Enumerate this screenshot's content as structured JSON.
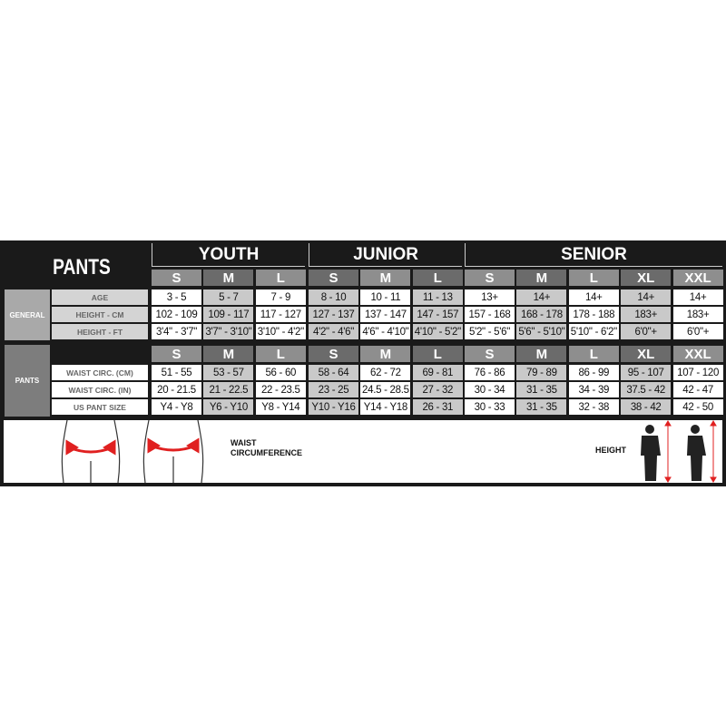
{
  "title": "PANTS",
  "groups": [
    {
      "label": "YOUTH",
      "sizes": [
        "S",
        "M",
        "L"
      ]
    },
    {
      "label": "JUNIOR",
      "sizes": [
        "S",
        "M",
        "L"
      ]
    },
    {
      "label": "SENIOR",
      "sizes": [
        "S",
        "M",
        "L",
        "XL",
        "XXL"
      ]
    }
  ],
  "general": {
    "label": "GENERAL",
    "rows": [
      {
        "label": "AGE",
        "values": [
          "3 - 5",
          "5 - 7",
          "7 - 9",
          "8 - 10",
          "10 - 11",
          "11 - 13",
          "13+",
          "14+",
          "14+",
          "14+",
          "14+"
        ]
      },
      {
        "label": "HEIGHT - CM",
        "values": [
          "102 - 109",
          "109 - 117",
          "117 - 127",
          "127 - 137",
          "137 - 147",
          "147 - 157",
          "157 - 168",
          "168 - 178",
          "178 - 188",
          "183+",
          "183+"
        ]
      },
      {
        "label": "HEIGHT - FT",
        "values": [
          "3'4\" - 3'7\"",
          "3'7\" - 3'10\"",
          "3'10\" - 4'2\"",
          "4'2\" - 4'6\"",
          "4'6\" - 4'10\"",
          "4'10\" - 5'2\"",
          "5'2\" - 5'6\"",
          "5'6\" - 5'10\"",
          "5'10\" - 6'2\"",
          "6'0\"+",
          "6'0\"+"
        ]
      }
    ]
  },
  "pants": {
    "label": "PANTS",
    "rows": [
      {
        "label": "WAIST CIRC. (CM)",
        "values": [
          "51 - 55",
          "53 - 57",
          "56 - 60",
          "58 - 64",
          "62 - 72",
          "69 - 81",
          "76 - 86",
          "79 - 89",
          "86 - 99",
          "95 - 107",
          "107 - 120"
        ]
      },
      {
        "label": "WAIST CIRC. (IN)",
        "values": [
          "20 - 21.5",
          "21 - 22.5",
          "22 - 23.5",
          "23 - 25",
          "24.5 - 28.5",
          "27 - 32",
          "30 - 34",
          "31 - 35",
          "34 - 39",
          "37.5 - 42",
          "42 - 47"
        ]
      },
      {
        "label": "US PANT SIZE",
        "values": [
          "Y4 - Y8",
          "Y6 - Y10",
          "Y8 - Y14",
          "Y10 - Y16",
          "Y14 - Y18",
          "26 - 31",
          "30 - 33",
          "31 - 35",
          "32 - 38",
          "38 - 42",
          "42 - 50"
        ]
      }
    ]
  },
  "illustration": {
    "waist_label": "WAIST CIRCUMFERENCE",
    "height_label": "HEIGHT",
    "arrow_color": "#e02020"
  },
  "colors": {
    "background": "#1a1a1a",
    "size_dark": "#6b6b6b",
    "size_light": "#8e8e8e",
    "cell_gray": "#c9c9c9"
  }
}
